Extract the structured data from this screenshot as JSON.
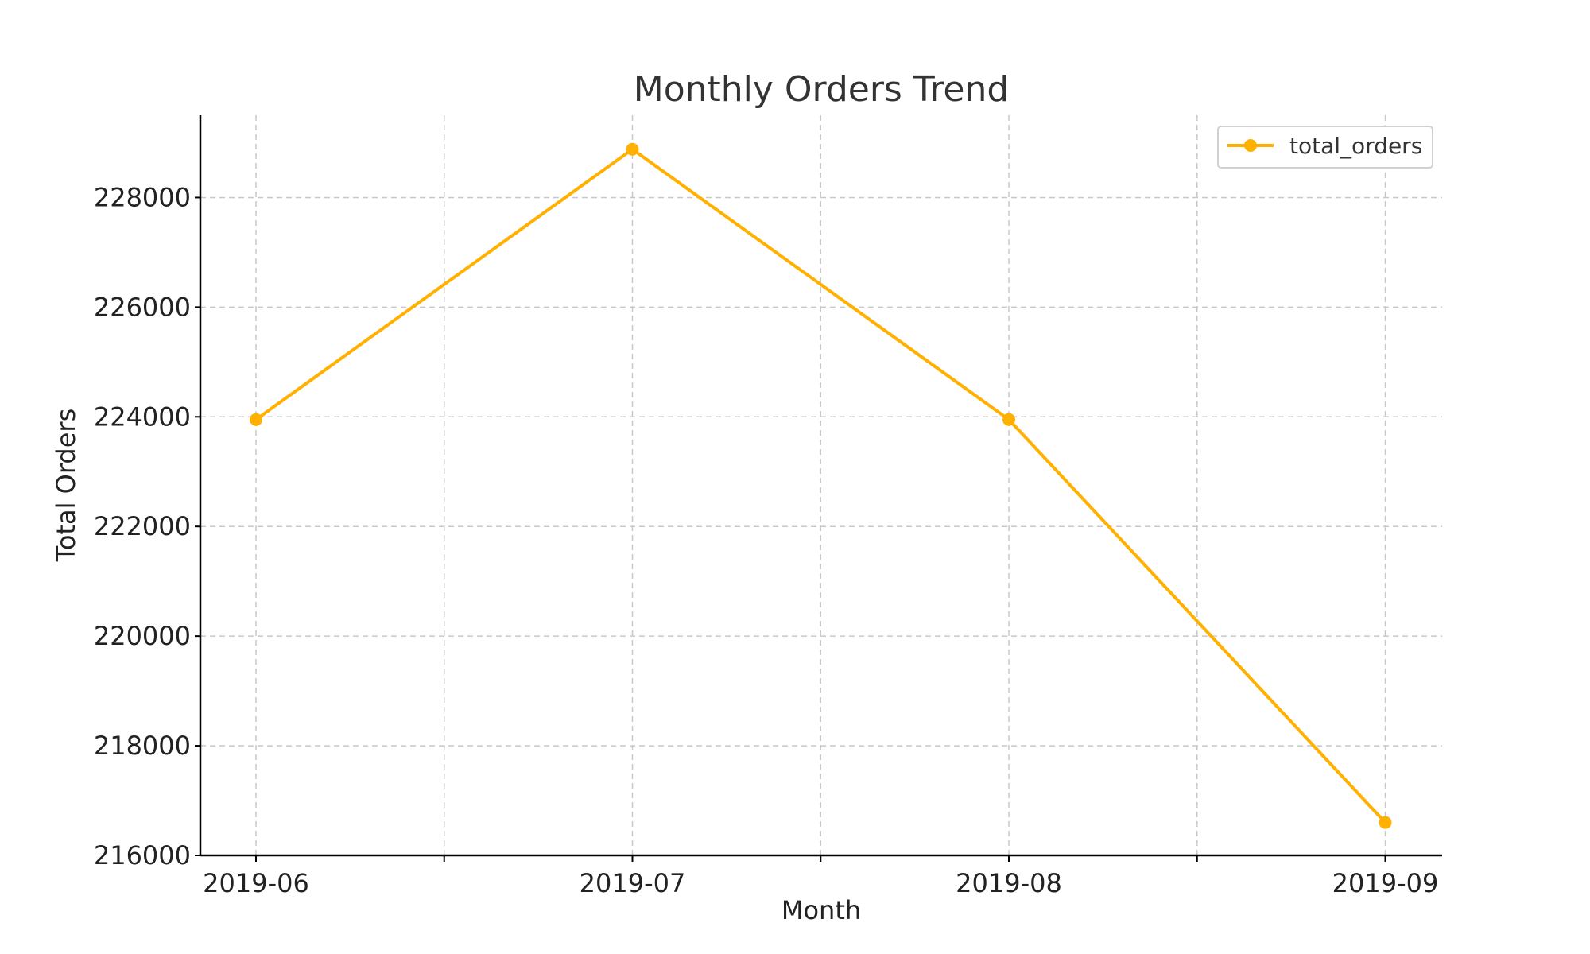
{
  "chart_data": {
    "type": "line",
    "title": "Monthly Orders Trend",
    "xlabel": "Month",
    "ylabel": "Total Orders",
    "categories": [
      "2019-06",
      "2019-07",
      "2019-08",
      "2019-09"
    ],
    "series": [
      {
        "name": "total_orders",
        "values": [
          223950,
          228880,
          223950,
          216600
        ],
        "color": "#FFB000"
      }
    ],
    "ylim": [
      216000,
      229500
    ],
    "yticks": [
      216000,
      218000,
      220000,
      222000,
      224000,
      226000,
      228000
    ],
    "grid": true,
    "legend": "top-right"
  }
}
